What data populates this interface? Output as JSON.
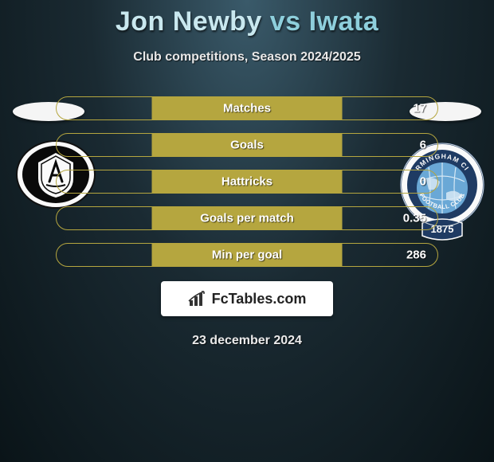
{
  "background": {
    "gradient_center": "#3a5a6a",
    "gradient_mid": "#1a2a32",
    "gradient_edge": "#0a1418"
  },
  "header": {
    "title_player": "Jon Newby",
    "title_vs": "vs",
    "title_opponent": "Iwata",
    "title_color": "#8ecfdc",
    "title_highlight_color": "#c9e8ef",
    "title_fontsize": 34,
    "subtitle": "Club competitions, Season 2024/2025",
    "subtitle_color": "#e8e8e8",
    "subtitle_fontsize": 16
  },
  "stats": {
    "bar_border_color": "#b5a63f",
    "bar_fill_color": "#b5a63f",
    "label_color": "#ffffff",
    "value_color": "#ffffff",
    "label_fontsize": 15,
    "rows": [
      {
        "label": "Matches",
        "value_right": "17",
        "fill_pct": 50
      },
      {
        "label": "Goals",
        "value_right": "6",
        "fill_pct": 50
      },
      {
        "label": "Hattricks",
        "value_right": "0",
        "fill_pct": 50
      },
      {
        "label": "Goals per match",
        "value_right": "0.35",
        "fill_pct": 50
      },
      {
        "label": "Min per goal",
        "value_right": "286",
        "fill_pct": 50
      }
    ]
  },
  "clubs": {
    "left": {
      "name": "academico-viseu-crest",
      "shield_color": "#0a0a0a",
      "ring_color": "#ffffff"
    },
    "right": {
      "name": "birmingham-city-crest",
      "globe_color": "#6aa8d6",
      "ribbon_color": "#1f3b63",
      "year": "1875",
      "top_text": "RMINGHAM CI",
      "bottom_text": "FOOTBALL CLUB"
    }
  },
  "branding": {
    "fctables_label": "FcTables.com",
    "fctables_color": "#222222",
    "fctables_fontsize": 18
  },
  "footer": {
    "date": "23 december 2024",
    "date_color": "#eaeaea",
    "date_fontsize": 16
  }
}
